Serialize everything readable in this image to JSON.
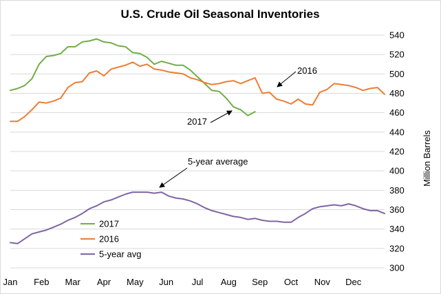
{
  "chart_data": {
    "type": "line",
    "title": "U.S. Crude Oil Seasonal Inventories",
    "ylabel": "Million Barrels",
    "xlabel": "",
    "ylim": [
      300,
      540
    ],
    "yticks": [
      300,
      320,
      340,
      360,
      380,
      400,
      420,
      440,
      460,
      480,
      500,
      520,
      540
    ],
    "x_tick_labels": [
      "Jan",
      "Feb",
      "Mar",
      "Apr",
      "May",
      "Jun",
      "Jul",
      "Aug",
      "Sep",
      "Oct",
      "Nov",
      "Dec"
    ],
    "x_unit": "week of year",
    "xlim": [
      1,
      53
    ],
    "grid": {
      "horizontal": true,
      "vertical": false
    },
    "legend_position": "bottom-left",
    "series": [
      {
        "name": "2017",
        "color": "#70ad47",
        "x": [
          1,
          2,
          3,
          4,
          5,
          6,
          7,
          8,
          9,
          10,
          11,
          12,
          13,
          14,
          15,
          16,
          17,
          18,
          19,
          20,
          21,
          22,
          23,
          24,
          25,
          26,
          27,
          28,
          29,
          30,
          31,
          32,
          33,
          34,
          35
        ],
        "values": [
          483,
          485,
          488,
          495,
          510,
          518,
          519,
          521,
          528,
          528,
          533,
          534,
          536,
          533,
          532,
          529,
          528,
          522,
          521,
          517,
          510,
          513,
          511,
          509,
          509,
          504,
          497,
          490,
          483,
          482,
          475,
          466,
          463,
          457,
          461
        ]
      },
      {
        "name": "2016",
        "color": "#ed7d31",
        "x": [
          1,
          2,
          3,
          4,
          5,
          6,
          7,
          8,
          9,
          10,
          11,
          12,
          13,
          14,
          15,
          16,
          17,
          18,
          19,
          20,
          21,
          22,
          23,
          24,
          25,
          26,
          27,
          28,
          29,
          30,
          31,
          32,
          33,
          34,
          35,
          36,
          37,
          38,
          39,
          40,
          41,
          42,
          43,
          44,
          45,
          46,
          47,
          48,
          49,
          50,
          51,
          52,
          53
        ],
        "values": [
          451,
          451,
          456,
          463,
          471,
          470,
          472,
          475,
          486,
          491,
          492,
          501,
          503,
          498,
          505,
          507,
          509,
          512,
          508,
          510,
          505,
          504,
          502,
          501,
          500,
          496,
          494,
          491,
          489,
          490,
          492,
          493,
          490,
          493,
          496,
          480,
          481,
          474,
          472,
          469,
          474,
          469,
          468,
          481,
          484,
          490,
          489,
          488,
          486,
          483,
          485,
          486,
          479
        ]
      },
      {
        "name": "5-year avg",
        "color": "#8064a2",
        "x": [
          1,
          2,
          3,
          4,
          5,
          6,
          7,
          8,
          9,
          10,
          11,
          12,
          13,
          14,
          15,
          16,
          17,
          18,
          19,
          20,
          21,
          22,
          23,
          24,
          25,
          26,
          27,
          28,
          29,
          30,
          31,
          32,
          33,
          34,
          35,
          36,
          37,
          38,
          39,
          40,
          41,
          42,
          43,
          44,
          45,
          46,
          47,
          48,
          49,
          50,
          51,
          52,
          53
        ],
        "values": [
          326,
          325,
          330,
          335,
          337,
          339,
          342,
          345,
          349,
          352,
          356,
          361,
          364,
          368,
          370,
          373,
          376,
          378,
          378,
          378,
          377,
          378,
          374,
          372,
          371,
          369,
          366,
          362,
          359,
          357,
          355,
          353,
          352,
          350,
          351,
          349,
          348,
          348,
          347,
          347,
          352,
          356,
          361,
          363,
          364,
          365,
          364,
          366,
          364,
          361,
          359,
          359,
          356
        ]
      }
    ],
    "annotations": [
      {
        "text": "2016"
      },
      {
        "text": "2017"
      },
      {
        "text": "5-year average"
      }
    ]
  }
}
